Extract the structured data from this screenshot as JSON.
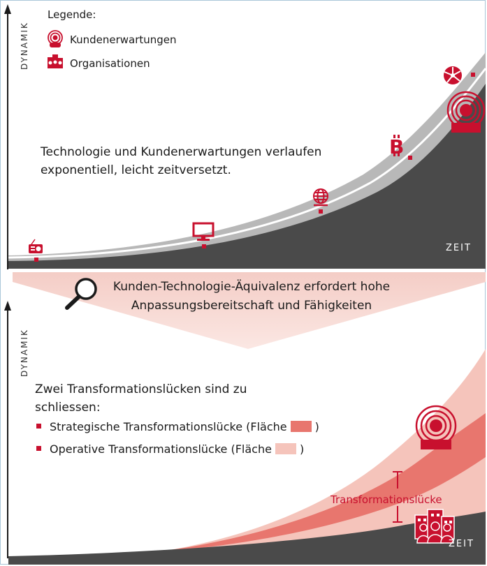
{
  "legend": {
    "title": "Legende:",
    "items": [
      {
        "label": "Kundenerwartungen",
        "icon": "customer-icon"
      },
      {
        "label": "Organisationen",
        "icon": "organization-icon"
      }
    ]
  },
  "top_chart": {
    "y_axis_label": "DYNAMIK",
    "x_axis_label": "ZEIT",
    "description": "Technologie und Kundenerwartungen verlaufen exponentiell, leicht zeitversetzt.",
    "technology_icons": [
      "radio-icon",
      "monitor-icon",
      "globe-icon",
      "bitcoin-icon",
      "network-icon"
    ]
  },
  "banner": {
    "text": "Kunden-Technologie-Äquivalenz erfordert hohe Anpassungsbereitschaft und Fähigkeiten",
    "icon": "magnifier-icon"
  },
  "bottom_chart": {
    "y_axis_label": "DYNAMIK",
    "x_axis_label": "ZEIT",
    "title": "Zwei Transformationslücken sind zu schliessen:",
    "bullets": [
      {
        "label": "Strategische Transformationslücke (Fläche",
        "suffix": ")",
        "swatch_color": "#e8766e"
      },
      {
        "label": "Operative Transformationslücke (Fläche",
        "suffix": ")",
        "swatch_color": "#f5c4bb"
      }
    ],
    "gap_label": "Transformationslücke"
  },
  "colors": {
    "accent_red": "#c8102e",
    "dark_gray": "#4a4a4a",
    "light_gray": "#b8b8b8",
    "strategic_gap": "#e8766e",
    "operative_gap": "#f5c4bb",
    "banner": "#f8d8d2"
  }
}
